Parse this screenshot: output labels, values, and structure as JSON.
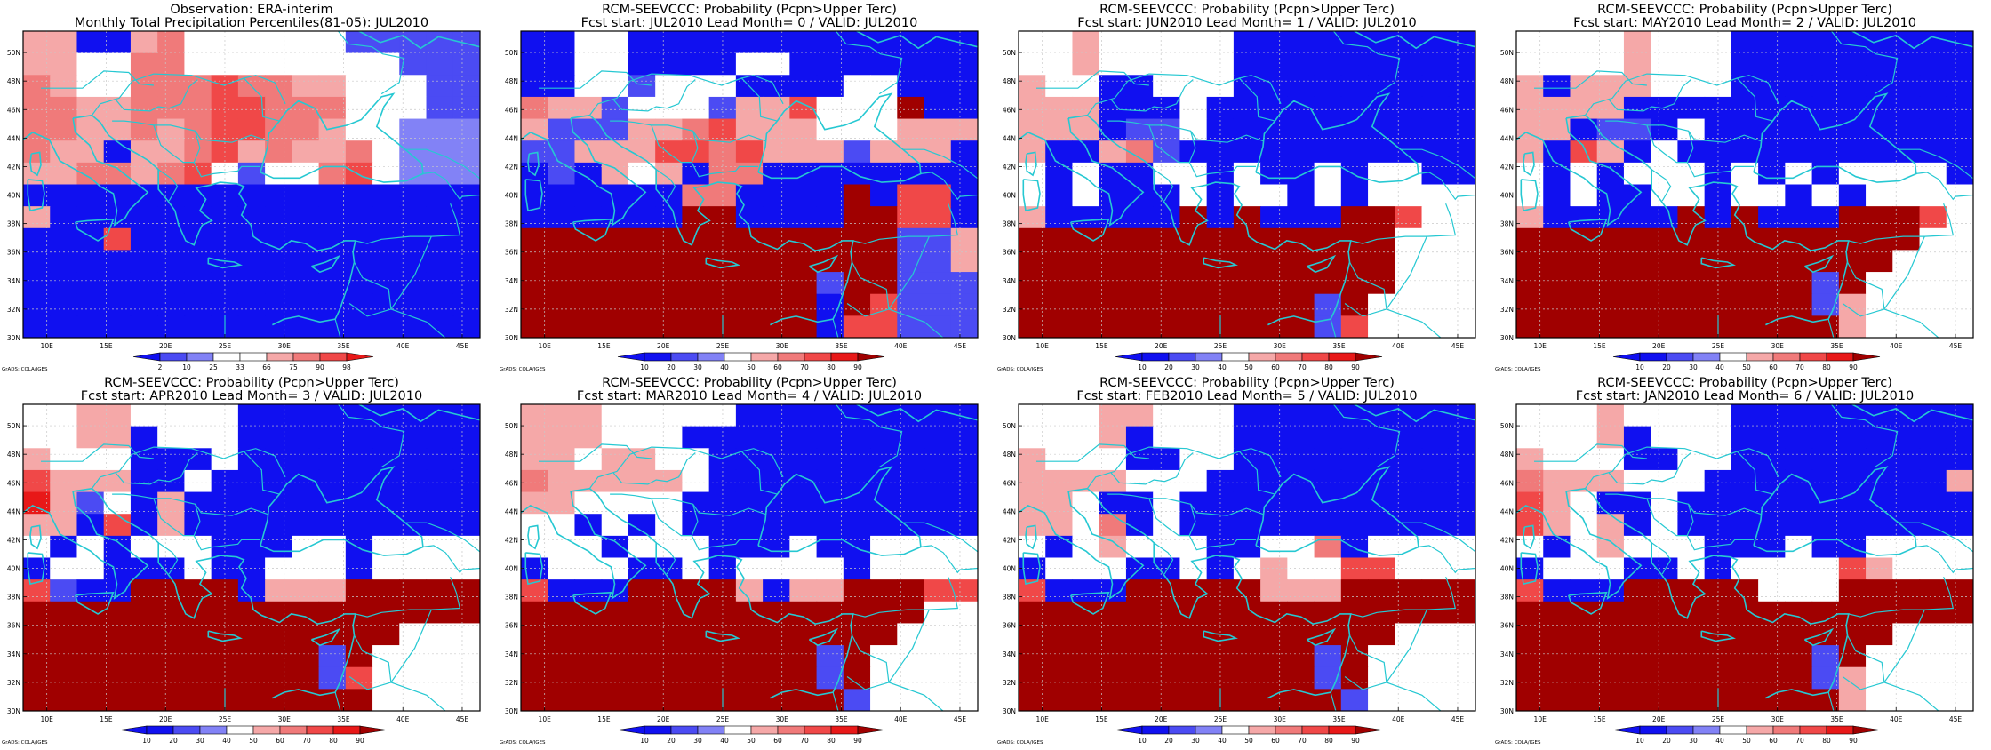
{
  "colors": {
    "ocean": "#1010f0",
    "coast": "#26c8d2",
    "frame": "#000000",
    "grid": "#c8c8c8"
  },
  "palette": {
    "B3": "#1010f0",
    "B2": "#4b4bf3",
    "B1": "#8282f6",
    "W": "#ffffff",
    "R1": "#f5a8a8",
    "R2": "#f07a7a",
    "R3": "#f04848",
    "R4": "#e81818",
    "R5": "#a00000"
  },
  "map_labels": {
    "lat": [
      "50N",
      "48N",
      "46N",
      "44N",
      "42N",
      "40N",
      "38N",
      "36N",
      "34N",
      "32N",
      "30N"
    ],
    "lon": [
      "10E",
      "15E",
      "20E",
      "25E",
      "30E",
      "35E",
      "40E",
      "45E"
    ],
    "credit": "GrADS: COLA/IGES"
  },
  "panels": [
    {
      "title1": "Observation: ERA-interim",
      "title2": "Monthly Total Precipitation Percentiles(81-05): JUL2010",
      "legend_labels": [
        "2",
        "10",
        "25",
        "33",
        "66",
        "75",
        "90",
        "98"
      ],
      "legend_colors": [
        "B3",
        "B2",
        "B1",
        "W",
        "W",
        "R1",
        "R2",
        "R3",
        "R4"
      ],
      "grid": [
        "R1 R1 B3 B3 R1 R2 W W W W W W B2 B2 B2 B2 B2",
        "R1 R1 W W R2 R2 W W W W W W W W B2 B2 B2",
        "R2 R1 W W R2 R2 R2 R3 R2 R2 R1 R1 W W W B2 B2",
        "R2 R2 R1 R1 R2 R2 R2 R3 R3 R2 R2 R2 W W W B2 B2",
        "R2 R2 R1 R1 R2 R1 R2 R3 R3 R2 R2 R1 W W B1 B1 B1",
        "R2 R1 R1 B3 R1 R1 R2 R3 R1 R2 R1 R1 R2 W B1 B1 B1",
        "R1 R1 R2 R2 R1 R2 R3 W B2 W W R2 R3 W B1 B1 B1",
        "B3 B3 B3 B3 B3 B3 B3 B3 B3 B3 B3 B3 B3 B3 B3 B3 B3",
        "R1 B3 B3 B3 B3 B3 B3 B3 B3 B3 B3 B3 B3 B3 B3 B3 B3",
        "B3 B3 B3 R3 B3 B3 B3 B3 B3 B3 B3 B3 B3 B3 B3 B3 B3",
        "B3 B3 B3 B3 B3 B3 B3 B3 B3 B3 B3 B3 B3 B3 B3 B3 B3",
        "B3 B3 B3 B3 B3 B3 B3 B3 B3 B3 B3 B3 B3 B3 B3 B3 B3",
        "B3 B3 B3 B3 B3 B3 B3 B3 B3 B3 B3 B3 B3 B3 B3 B3 B3",
        "B3 B3 B3 B3 B3 B3 B3 B3 B3 B3 B3 B3 B3 B3 B3 B3 B3"
      ]
    },
    {
      "title1": "RCM-SEEVCCC: Probability (Pcpn>Upper Terc)",
      "title2": "Fcst start: JUL2010  Lead Month= 0 / VALID: JUL2010",
      "legend_labels": [
        "10",
        "20",
        "30",
        "40",
        "50",
        "60",
        "70",
        "80",
        "90"
      ],
      "legend_colors": [
        "B3",
        "B3",
        "B2",
        "B1",
        "W",
        "R1",
        "R2",
        "R3",
        "R4",
        "R5"
      ],
      "grid": [
        "B3 B3 W W B3 B3 B3 B3 B3 B3 B3 B3 B3 B3 B3 B3 B3",
        "B3 B3 W W B3 B3 B3 B3 W W B3 B3 B3 B3 B3 B3 B3",
        "B3 B3 W W B2 W W W B3 B3 B3 B3 W W B3 B3 B3",
        "R2 R1 R1 B2 W W W B2 R1 R1 R3 W W W R5 B3 B3",
        "R1 B2 B2 B2 R1 R1 R2 R3 R1 R1 R1 W W W R1 R1 R1",
        "B2 B2 R1 R1 R1 R3 R3 R2 R3 R1 R1 R1 B2 R1 R1 R1 B3",
        "B3 B2 B3 R1 W R1 B3 R2 R2 B3 B3 B3 B3 B3 B3 B3 B3",
        "B3 B3 B3 B3 B3 B3 R2 R2 B3 B3 B3 B3 R5 B3 R3 R3 B3",
        "B3 B3 B3 B3 B3 B3 R5 R5 B3 B3 B3 B3 R5 R5 R3 R3 B3",
        "R5 R5 R5 R5 R5 R5 R5 R5 R5 R5 R5 R5 R5 R5 B2 B2 R1",
        "R5 R5 R5 R5 R5 R5 R5 R5 R5 R5 R5 R5 R5 R5 B2 B2 R1",
        "R5 R5 R5 R5 R5 R5 R5 R5 R5 R5 R5 B2 R5 R5 B2 B2 B2",
        "R5 R5 R5 R5 R5 R5 R5 R5 R5 R5 R5 B3 R5 R3 B2 B2 B2",
        "R5 R5 R5 R5 R5 R5 R5 R5 R5 R5 R5 B3 R3 R3 B2 B2 B2"
      ]
    },
    {
      "title1": "RCM-SEEVCCC: Probability (Pcpn>Upper Terc)",
      "title2": "Fcst start: JUN2010  Lead Month= 1 / VALID: JUL2010",
      "legend_labels": [
        "10",
        "20",
        "30",
        "40",
        "50",
        "60",
        "70",
        "80",
        "90"
      ],
      "legend_colors": [
        "B3",
        "B3",
        "B2",
        "B1",
        "W",
        "R1",
        "R2",
        "R3",
        "R4",
        "R5"
      ],
      "grid": [
        "W W R1 W W W W W B3 B3 B3 B3 B3 B3 B3 B3 B3",
        "W W R1 W W W W W B3 B3 B3 B3 B3 B3 B3 B3 B3",
        "R1 W W B3 B3 W W W B3 B3 B3 B3 B3 B3 B3 B3 B3",
        "R1 R1 R1 B3 B3 B3 W B3 B3 B3 B3 B3 B3 B3 B3 B3 B3",
        "R1 R1 R1 B3 B2 B2 W B3 B3 B3 B3 B3 B3 B3 B3 B3 B3",
        "R1 B3 B3 R1 R2 B2 B3 B3 B3 B3 B3 B3 B3 B3 B3 B3 B3",
        "W B3 W B3 B3 W W B3 W B3 B3 W B3 W W B3 B3",
        "W B3 W B3 B3 B3 W B3 W W B3 W B3 W W W W",
        "R1 B3 B3 B3 B3 B3 R5 B3 R5 B3 B3 B3 R5 R5 R3 W W",
        "R5 R5 R5 R5 R5 R5 R5 R5 R5 R5 R5 R5 R5 R5 W W W",
        "R5 R5 R5 R5 R5 R5 R5 R5 R5 R5 R5 R5 R5 R5 W W W",
        "R5 R5 R5 R5 R5 R5 R5 R5 R5 R5 R5 R5 R5 R5 W W W",
        "R5 R5 R5 R5 R5 R5 R5 R5 R5 R5 R5 B2 R5 W W W W",
        "R5 R5 R5 R5 R5 R5 R5 R5 R5 R5 R5 B2 R3 W W W W"
      ]
    },
    {
      "title1": "RCM-SEEVCCC: Probability (Pcpn>Upper Terc)",
      "title2": "Fcst start: MAY2010  Lead Month= 2 / VALID: JUL2010",
      "legend_labels": [
        "10",
        "20",
        "30",
        "40",
        "50",
        "60",
        "70",
        "80",
        "90"
      ],
      "legend_colors": [
        "B3",
        "B3",
        "B2",
        "B1",
        "W",
        "R1",
        "R2",
        "R3",
        "R4",
        "R5"
      ],
      "grid": [
        "W W W W R1 W W W B3 B3 B3 B3 B3 B3 B3 B3 B3",
        "W W W W R1 W W W B3 B3 B3 B3 B3 B3 B3 B3 B3",
        "R1 B3 R1 R1 R1 W W W B3 B3 B3 B3 B3 B3 B3 B3 B3",
        "R1 R1 R1 R1 B3 B3 B3 B3 B3 B3 B3 B3 B3 B3 B3 B3 B3",
        "R1 R1 B3 B2 B2 B3 W B3 B3 B3 B3 B3 B3 B3 B3 B3 B3",
        "R1 B3 R3 R1 B3 W B3 B3 B3 B3 B3 B3 B3 B3 B3 B3 B3",
        "W B3 W B3 W W W B3 W B3 W B3 W W W W B3",
        "W B3 W B3 B3 W W B3 W W B3 W B3 W W W W",
        "R1 B3 B3 B3 B3 B3 R5 B3 R5 B3 B3 B3 R5 R5 R5 R3 W",
        "R5 R5 R5 R5 R5 R5 R5 R5 R5 R5 R5 R5 R5 R5 R5 W W",
        "R5 R5 R5 R5 R5 R5 R5 R5 R5 R5 R5 R5 R5 R5 W W W",
        "R5 R5 R5 R5 R5 R5 R5 R5 R5 R5 R5 B2 R5 W W W W",
        "R5 R5 R5 R5 R5 R5 R5 R5 R5 R5 R5 B2 R1 W W W W",
        "R5 R5 R5 R5 R5 R5 R5 R5 R5 R5 R5 R5 R1 W W W W"
      ]
    },
    {
      "title1": "RCM-SEEVCCC: Probability (Pcpn>Upper Terc)",
      "title2": "Fcst start: APR2010  Lead Month= 3 / VALID: JUL2010",
      "legend_labels": [
        "10",
        "20",
        "30",
        "40",
        "50",
        "60",
        "70",
        "80",
        "90"
      ],
      "legend_colors": [
        "B3",
        "B3",
        "B2",
        "B1",
        "W",
        "R1",
        "R2",
        "R3",
        "R4",
        "R5"
      ],
      "grid": [
        "W W R1 R1 W W W W B3 B3 B3 B3 B3 B3 B3 B3 B3",
        "W W R1 R1 B3 W W W B3 B3 B3 B3 B3 B3 B3 B3 B3",
        "R1 W W W B3 B3 B3 W B3 B3 B3 B3 B3 B3 B3 B3 B3",
        "R3 R1 R1 R1 B3 B3 W B3 B3 B3 B3 B3 B3 B3 B3 B3 B3",
        "R4 R1 B2 W B3 R1 B3 B3 B3 B3 B3 B3 B3 B3 B3 B3 B3",
        "R1 R1 B3 R3 B3 R1 B3 B3 B3 B3 B3 B3 B3 B3 B3 B3 B3",
        "W B3 W B3 W W W B3 B3 B3 W W B3 W W W W",
        "B3 W W B3 B3 B3 W B3 B3 W W W B3 W W W W",
        "R3 B2 B3 B3 R5 R5 R5 R5 B3 R1 R1 R1 R5 R5 R5 R5 R5",
        "R5 R5 R5 R5 R5 R5 R5 R5 R5 R5 R5 R5 R5 R5 R5 R5 R5",
        "R5 R5 R5 R5 R5 R5 R5 R5 R5 R5 R5 R5 R5 R5 W W W",
        "R5 R5 R5 R5 R5 R5 R5 R5 R5 R5 R5 B2 R5 W W W W",
        "R5 R5 R5 R5 R5 R5 R5 R5 R5 R5 R5 B2 R3 W W W W",
        "R5 R5 R5 R5 R5 R5 R5 R5 R5 R5 R5 R5 R5 W W W W"
      ]
    },
    {
      "title1": "RCM-SEEVCCC: Probability (Pcpn>Upper Terc)",
      "title2": "Fcst start: MAR2010  Lead Month= 4 / VALID: JUL2010",
      "legend_labels": [
        "10",
        "20",
        "30",
        "40",
        "50",
        "60",
        "70",
        "80",
        "90"
      ],
      "legend_colors": [
        "B3",
        "B3",
        "B2",
        "B1",
        "W",
        "R1",
        "R2",
        "R3",
        "R4",
        "R5"
      ],
      "grid": [
        "R1 R1 R1 W W W W W B3 B3 B3 B3 B3 B3 B3 B3 B3",
        "R1 R1 R1 W W W B3 B3 B3 B3 B3 B3 B3 B3 B3 B3 B3",
        "R1 R1 W R1 R1 W W B3 B3 B3 B3 B3 B3 B3 B3 B3 B3",
        "R2 R1 R1 R1 R1 R1 W B3 B3 B3 B3 B3 B3 B3 B3 B3 B3",
        "R1 R1 W W W W B3 B3 B3 B3 B3 B3 B3 B3 B3 B3 B3",
        "W W B3 W B3 W B3 B3 B3 B3 B3 B3 B3 B3 B3 B3 B3",
        "W W W B3 W W W B3 B3 B3 W B3 B3 W W W W",
        "B3 W W W B3 B3 W B3 W W W W B3 W W W W",
        "R3 B3 B3 B3 R5 R5 R5 R5 R1 B3 R1 R1 R5 R5 R5 R3 R3",
        "R5 R5 R5 R5 R5 R5 R5 R5 R5 R5 R5 R5 R5 R5 R5 W W",
        "R5 R5 R5 R5 R5 R5 R5 R5 R5 R5 R5 R5 R5 R5 W W W",
        "R5 R5 R5 R5 R5 R5 R5 R5 R5 R5 R5 B2 R5 W W W W",
        "R5 R5 R5 R5 R5 R5 R5 R5 R5 R5 R5 B2 R5 W W W W",
        "R5 R5 R5 R5 R5 R5 R5 R5 R5 R5 R5 R5 B2 W W W W"
      ]
    },
    {
      "title1": "RCM-SEEVCCC: Probability (Pcpn>Upper Terc)",
      "title2": "Fcst start: FEB2010  Lead Month= 5 / VALID: JUL2010",
      "legend_labels": [
        "10",
        "20",
        "30",
        "40",
        "50",
        "60",
        "70",
        "80",
        "90"
      ],
      "legend_colors": [
        "B3",
        "B3",
        "B2",
        "B1",
        "W",
        "R1",
        "R2",
        "R3",
        "R4",
        "R5"
      ],
      "grid": [
        "W W W R1 R1 W W W B3 B3 B3 B3 B3 B3 B3 B3 B3",
        "W W W R1 B3 W W W B3 B3 B3 B3 B3 B3 B3 B3 B3",
        "R1 W W W B3 B3 W W B3 B3 B3 B3 B3 B3 B3 B3 B3",
        "R1 R1 R1 R1 W W W B3 B3 B3 B3 B3 B3 B3 B3 B3 B3",
        "R1 R1 W B3 B3 W B3 B3 B3 B3 B3 B3 B3 B3 B3 B3 B3",
        "R1 R1 W R2 B3 W B3 B3 B3 B3 B3 B3 B3 B3 B3 B3 B3",
        "W B3 W R1 W W W B3 B3 W W R2 B3 W W W W",
        "B3 W W W B3 B3 W B3 W R1 W W R3 R3 W W W",
        "R3 B3 B3 B3 R5 R5 R5 R5 R5 R1 R1 R1 R5 R5 R5 R5 R5",
        "R5 R5 R5 R5 R5 R5 R5 R5 R5 R5 R5 R5 R5 R5 R5 R5 R5",
        "R5 R5 R5 R5 R5 R5 R5 R5 R5 R5 R5 R5 R5 R5 W W W",
        "R5 R5 R5 R5 R5 R5 R5 R5 R5 R5 R5 B2 R5 W W W W",
        "R5 R5 R5 R5 R5 R5 R5 R5 R5 R5 R5 B2 R5 W W W W",
        "R5 R5 R5 R5 R5 R5 R5 R5 R5 R5 R5 R5 B2 W W W W"
      ]
    },
    {
      "title1": "RCM-SEEVCCC: Probability (Pcpn>Upper Terc)",
      "title2": "Fcst start: JAN2010  Lead Month= 6 / VALID: JUL2010",
      "legend_labels": [
        "10",
        "20",
        "30",
        "40",
        "50",
        "60",
        "70",
        "80",
        "90"
      ],
      "legend_colors": [
        "B3",
        "B3",
        "B2",
        "B1",
        "W",
        "R1",
        "R2",
        "R3",
        "R4",
        "R5"
      ],
      "grid": [
        "W W W R1 W W W W B3 B3 B3 B3 B3 B3 B3 B3 B3",
        "W W W R1 B3 W W W B3 B3 B3 B3 B3 B3 B3 B3 B3",
        "R1 W W W B3 B3 W W B3 B3 B3 B3 B3 B3 B3 B3 B3",
        "R2 R1 R1 R1 W W W B3 B3 B3 B3 B3 B3 B3 B3 B3 R1",
        "R3 R1 W B3 B3 W B3 B3 B3 B3 B3 B3 B3 B3 B3 B3 B3",
        "R3 R1 W R1 B3 W B3 B3 B3 B3 B3 B3 B3 B3 B3 B3 B3",
        "W B3 W R1 W W W B3 B3 B3 W B3 B3 W W W W",
        "B3 W W W B3 B3 W B3 W W W W R3 R1 W W W",
        "R3 B3 B3 B3 R5 R5 R5 R5 R5 W W W R5 R5 R5 R5 R5",
        "R5 R5 R5 R5 R5 R5 R5 R5 R5 R5 R5 R5 R5 R5 R5 R5 R5",
        "R5 R5 R5 R5 R5 R5 R5 R5 R5 R5 R5 R5 R5 R5 W W W",
        "R5 R5 R5 R5 R5 R5 R5 R5 R5 R5 R5 B2 R5 W W W W",
        "R5 R5 R5 R5 R5 R5 R5 R5 R5 R5 R5 B2 R1 W W W W",
        "R5 R5 R5 R5 R5 R5 R5 R5 R5 R5 R5 R5 R1 W W W W"
      ]
    }
  ]
}
